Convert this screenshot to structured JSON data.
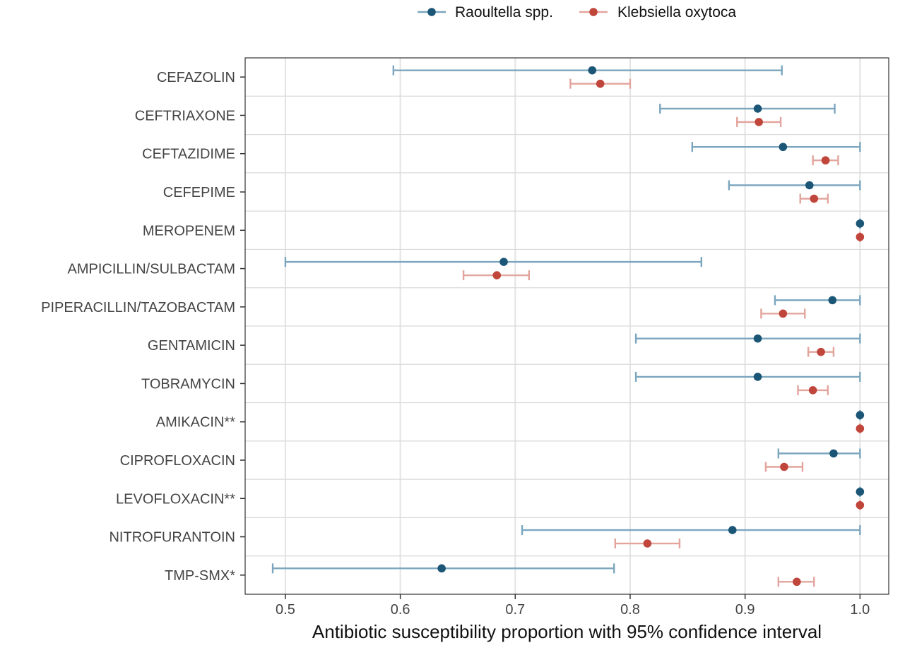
{
  "chart_data": {
    "type": "forest",
    "title": "",
    "xlabel": "Antibiotic susceptibility proportion with 95% confidence interval",
    "ylabel": "",
    "xlim": [
      0.465,
      1.025
    ],
    "x_ticks": [
      0.5,
      0.6,
      0.7,
      0.8,
      0.9,
      1.0
    ],
    "x_tick_labels": [
      "0.5",
      "0.6",
      "0.7",
      "0.8",
      "0.9",
      "1.0"
    ],
    "grid": true,
    "legend_position": "top",
    "categories": [
      "CEFAZOLIN",
      "CEFTRIAXONE",
      "CEFTAZIDIME",
      "CEFEPIME",
      "MEROPENEM",
      "AMPICILLIN/SULBACTAM",
      "PIPERACILLIN/TAZOBACTAM",
      "GENTAMICIN",
      "TOBRAMYCIN",
      "AMIKACIN**",
      "CIPROFLOXACIN",
      "LEVOFLOXACIN**",
      "NITROFURANTOIN",
      "TMP-SMX*"
    ],
    "series": [
      {
        "name": "Raoultella spp.",
        "point_color": "#1B5677",
        "bar_color": "#7BA6BE",
        "estimate": [
          0.767,
          0.911,
          0.933,
          0.956,
          1.0,
          0.69,
          0.976,
          0.911,
          0.911,
          1.0,
          0.977,
          1.0,
          0.889,
          0.636
        ],
        "lower": [
          0.594,
          0.826,
          0.854,
          0.886,
          1.0,
          0.5,
          0.926,
          0.805,
          0.805,
          1.0,
          0.929,
          1.0,
          0.706,
          0.489
        ],
        "upper": [
          0.932,
          0.978,
          1.0,
          1.0,
          1.0,
          0.862,
          1.0,
          1.0,
          1.0,
          1.0,
          1.0,
          1.0,
          1.0,
          0.786
        ]
      },
      {
        "name": "Klebsiella oxytoca",
        "point_color": "#C0453A",
        "bar_color": "#E2A49C",
        "estimate": [
          0.774,
          0.912,
          0.97,
          0.96,
          1.0,
          0.684,
          0.933,
          0.966,
          0.959,
          1.0,
          0.934,
          1.0,
          0.815,
          0.945
        ],
        "lower": [
          0.748,
          0.893,
          0.959,
          0.948,
          1.0,
          0.655,
          0.914,
          0.955,
          0.946,
          1.0,
          0.918,
          1.0,
          0.787,
          0.929
        ],
        "upper": [
          0.8,
          0.931,
          0.981,
          0.972,
          1.0,
          0.712,
          0.952,
          0.977,
          0.972,
          1.0,
          0.95,
          1.0,
          0.843,
          0.96
        ]
      }
    ]
  }
}
